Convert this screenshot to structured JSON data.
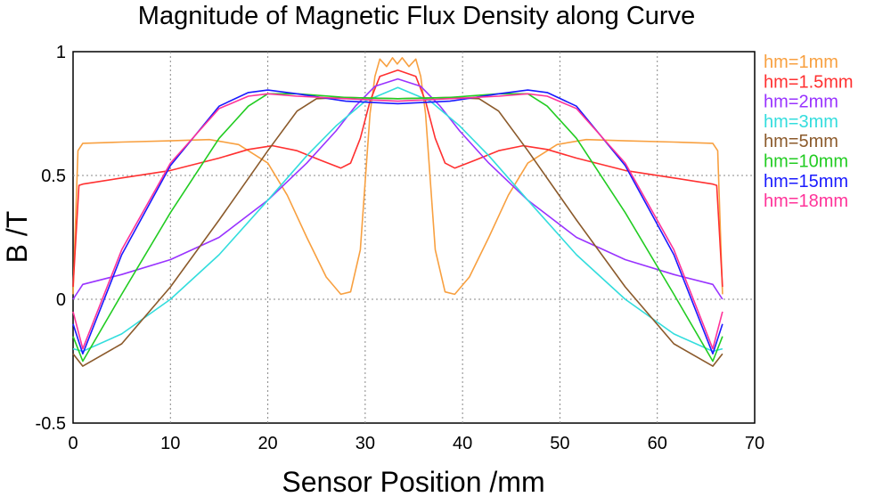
{
  "chart_data": {
    "type": "line",
    "title": "Magnitude of Magnetic Flux Density along Curve",
    "xlabel": "Sensor Position /mm",
    "ylabel": "B /T",
    "xlim": [
      0,
      70
    ],
    "ylim": [
      -0.5,
      1
    ],
    "xticks": [
      "0",
      "10",
      "20",
      "30",
      "40",
      "50",
      "60",
      "70"
    ],
    "yticks": [
      "-0.5",
      "0",
      "0.5",
      "1"
    ],
    "grid": true,
    "legend_position": "right",
    "series": [
      {
        "name": "hm=1mm",
        "color": "#f8a040",
        "points": [
          [
            0,
            0.02
          ],
          [
            0.5,
            0.6
          ],
          [
            1,
            0.63
          ],
          [
            5,
            0.635
          ],
          [
            10,
            0.64
          ],
          [
            14,
            0.645
          ],
          [
            17,
            0.625
          ],
          [
            20,
            0.55
          ],
          [
            22,
            0.42
          ],
          [
            24,
            0.25
          ],
          [
            26,
            0.09
          ],
          [
            27.5,
            0.02
          ],
          [
            28.5,
            0.03
          ],
          [
            29.5,
            0.2
          ],
          [
            30.5,
            0.75
          ],
          [
            31,
            0.9
          ],
          [
            31.5,
            0.97
          ],
          [
            32.2,
            0.94
          ],
          [
            32.8,
            0.975
          ],
          [
            33.3,
            0.95
          ],
          [
            33.8,
            0.975
          ],
          [
            34.5,
            0.94
          ],
          [
            35.2,
            0.97
          ],
          [
            35.7,
            0.9
          ],
          [
            36.2,
            0.75
          ],
          [
            37.2,
            0.2
          ],
          [
            38.2,
            0.03
          ],
          [
            39.2,
            0.02
          ],
          [
            40.7,
            0.09
          ],
          [
            42.7,
            0.25
          ],
          [
            44.7,
            0.42
          ],
          [
            46.7,
            0.55
          ],
          [
            49.7,
            0.625
          ],
          [
            52.7,
            0.645
          ],
          [
            56.7,
            0.64
          ],
          [
            61.7,
            0.635
          ],
          [
            65.7,
            0.63
          ],
          [
            66.2,
            0.6
          ],
          [
            66.7,
            0.02
          ]
        ]
      },
      {
        "name": "hm=1.5mm",
        "color": "#ff3030",
        "points": [
          [
            0,
            0.05
          ],
          [
            0.6,
            0.46
          ],
          [
            1,
            0.465
          ],
          [
            5,
            0.49
          ],
          [
            10,
            0.52
          ],
          [
            15,
            0.57
          ],
          [
            18,
            0.605
          ],
          [
            20.5,
            0.62
          ],
          [
            23,
            0.6
          ],
          [
            25.5,
            0.56
          ],
          [
            27.5,
            0.53
          ],
          [
            28.5,
            0.55
          ],
          [
            29.5,
            0.65
          ],
          [
            30.5,
            0.8
          ],
          [
            31.5,
            0.9
          ],
          [
            33.35,
            0.925
          ],
          [
            35.2,
            0.9
          ],
          [
            36.2,
            0.8
          ],
          [
            37.2,
            0.65
          ],
          [
            38.2,
            0.55
          ],
          [
            39.2,
            0.53
          ],
          [
            41.2,
            0.56
          ],
          [
            43.7,
            0.6
          ],
          [
            46.2,
            0.62
          ],
          [
            48.7,
            0.605
          ],
          [
            51.7,
            0.57
          ],
          [
            56.7,
            0.52
          ],
          [
            61.7,
            0.49
          ],
          [
            65.7,
            0.465
          ],
          [
            66.1,
            0.46
          ],
          [
            66.7,
            0.05
          ]
        ]
      },
      {
        "name": "hm=2mm",
        "color": "#9933ff",
        "points": [
          [
            0,
            0
          ],
          [
            1,
            0.06
          ],
          [
            5,
            0.1
          ],
          [
            10,
            0.16
          ],
          [
            15,
            0.25
          ],
          [
            20,
            0.4
          ],
          [
            24,
            0.55
          ],
          [
            27,
            0.68
          ],
          [
            29,
            0.78
          ],
          [
            31,
            0.86
          ],
          [
            33.35,
            0.89
          ],
          [
            35.7,
            0.86
          ],
          [
            37.7,
            0.78
          ],
          [
            39.7,
            0.68
          ],
          [
            42.7,
            0.55
          ],
          [
            46.7,
            0.4
          ],
          [
            51.7,
            0.25
          ],
          [
            56.7,
            0.16
          ],
          [
            61.7,
            0.1
          ],
          [
            65.7,
            0.06
          ],
          [
            66.7,
            0
          ]
        ]
      },
      {
        "name": "hm=3mm",
        "color": "#33dddd",
        "points": [
          [
            0,
            -0.2
          ],
          [
            1,
            -0.21
          ],
          [
            5,
            -0.14
          ],
          [
            10,
            0
          ],
          [
            15,
            0.18
          ],
          [
            20,
            0.4
          ],
          [
            24,
            0.58
          ],
          [
            27,
            0.7
          ],
          [
            30,
            0.8
          ],
          [
            33.35,
            0.855
          ],
          [
            36.7,
            0.8
          ],
          [
            39.7,
            0.7
          ],
          [
            42.7,
            0.58
          ],
          [
            46.7,
            0.4
          ],
          [
            51.7,
            0.18
          ],
          [
            56.7,
            0
          ],
          [
            61.7,
            -0.14
          ],
          [
            65.7,
            -0.21
          ],
          [
            66.7,
            -0.2
          ]
        ]
      },
      {
        "name": "hm=5mm",
        "color": "#8b5a2b",
        "points": [
          [
            0,
            -0.22
          ],
          [
            1,
            -0.27
          ],
          [
            5,
            -0.18
          ],
          [
            10,
            0.05
          ],
          [
            15,
            0.32
          ],
          [
            20,
            0.6
          ],
          [
            23,
            0.76
          ],
          [
            25,
            0.81
          ],
          [
            28,
            0.815
          ],
          [
            33.35,
            0.81
          ],
          [
            38.7,
            0.815
          ],
          [
            41.7,
            0.81
          ],
          [
            43.7,
            0.76
          ],
          [
            46.7,
            0.6
          ],
          [
            51.7,
            0.32
          ],
          [
            56.7,
            0.05
          ],
          [
            61.7,
            -0.18
          ],
          [
            65.7,
            -0.27
          ],
          [
            66.7,
            -0.22
          ]
        ]
      },
      {
        "name": "hm=10mm",
        "color": "#22cc22",
        "points": [
          [
            0,
            -0.15
          ],
          [
            1,
            -0.25
          ],
          [
            5,
            0.02
          ],
          [
            10,
            0.35
          ],
          [
            15,
            0.65
          ],
          [
            18,
            0.78
          ],
          [
            20,
            0.83
          ],
          [
            23,
            0.83
          ],
          [
            28,
            0.815
          ],
          [
            33.35,
            0.81
          ],
          [
            38.7,
            0.815
          ],
          [
            43.7,
            0.83
          ],
          [
            46.7,
            0.83
          ],
          [
            48.7,
            0.78
          ],
          [
            51.7,
            0.65
          ],
          [
            56.7,
            0.35
          ],
          [
            61.7,
            0.02
          ],
          [
            65.7,
            -0.25
          ],
          [
            66.7,
            -0.15
          ]
        ]
      },
      {
        "name": "hm=15mm",
        "color": "#1a1aff",
        "points": [
          [
            0,
            -0.1
          ],
          [
            1,
            -0.22
          ],
          [
            5,
            0.18
          ],
          [
            10,
            0.54
          ],
          [
            15,
            0.78
          ],
          [
            18,
            0.835
          ],
          [
            20,
            0.845
          ],
          [
            23,
            0.83
          ],
          [
            28,
            0.8
          ],
          [
            33.35,
            0.79
          ],
          [
            38.7,
            0.8
          ],
          [
            43.7,
            0.83
          ],
          [
            46.7,
            0.845
          ],
          [
            48.7,
            0.835
          ],
          [
            51.7,
            0.78
          ],
          [
            56.7,
            0.54
          ],
          [
            61.7,
            0.18
          ],
          [
            65.7,
            -0.22
          ],
          [
            66.7,
            -0.1
          ]
        ]
      },
      {
        "name": "hm=18mm",
        "color": "#ff3399",
        "points": [
          [
            0,
            -0.05
          ],
          [
            1,
            -0.2
          ],
          [
            5,
            0.2
          ],
          [
            10,
            0.55
          ],
          [
            15,
            0.77
          ],
          [
            18,
            0.82
          ],
          [
            20,
            0.83
          ],
          [
            23,
            0.82
          ],
          [
            28,
            0.81
          ],
          [
            33.35,
            0.8
          ],
          [
            38.7,
            0.81
          ],
          [
            43.7,
            0.82
          ],
          [
            46.7,
            0.83
          ],
          [
            48.7,
            0.82
          ],
          [
            51.7,
            0.77
          ],
          [
            56.7,
            0.55
          ],
          [
            61.7,
            0.2
          ],
          [
            65.7,
            -0.2
          ],
          [
            66.7,
            -0.05
          ]
        ]
      }
    ]
  }
}
